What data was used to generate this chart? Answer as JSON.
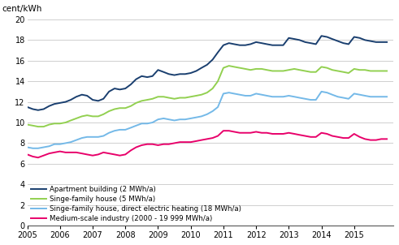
{
  "ylabel": "cent/kWh",
  "ylim": [
    0,
    20
  ],
  "yticks": [
    0,
    2,
    4,
    6,
    8,
    10,
    12,
    14,
    16,
    18,
    20
  ],
  "xlim": [
    2005.0,
    2016.2
  ],
  "xticks": [
    2005,
    2006,
    2007,
    2008,
    2009,
    2010,
    2011,
    2012,
    2013,
    2014,
    2015
  ],
  "background_color": "#ffffff",
  "grid_color": "#c8c8c8",
  "series": [
    {
      "label": "Apartment building (2 MWh/a)",
      "color": "#1a3f6f",
      "linewidth": 1.4,
      "x": [
        2005.0,
        2005.17,
        2005.33,
        2005.5,
        2005.67,
        2005.83,
        2006.0,
        2006.17,
        2006.33,
        2006.5,
        2006.67,
        2006.83,
        2007.0,
        2007.17,
        2007.33,
        2007.5,
        2007.67,
        2007.83,
        2008.0,
        2008.17,
        2008.33,
        2008.5,
        2008.67,
        2008.83,
        2009.0,
        2009.17,
        2009.33,
        2009.5,
        2009.67,
        2009.83,
        2010.0,
        2010.17,
        2010.33,
        2010.5,
        2010.67,
        2010.83,
        2011.0,
        2011.17,
        2011.33,
        2011.5,
        2011.67,
        2011.83,
        2012.0,
        2012.17,
        2012.33,
        2012.5,
        2012.67,
        2012.83,
        2013.0,
        2013.17,
        2013.33,
        2013.5,
        2013.67,
        2013.83,
        2014.0,
        2014.17,
        2014.33,
        2014.5,
        2014.67,
        2014.83,
        2015.0,
        2015.17,
        2015.33,
        2015.5,
        2015.67,
        2015.83,
        2016.0
      ],
      "y": [
        11.5,
        11.3,
        11.2,
        11.3,
        11.6,
        11.8,
        11.9,
        12.0,
        12.2,
        12.5,
        12.7,
        12.6,
        12.2,
        12.1,
        12.3,
        13.0,
        13.3,
        13.2,
        13.3,
        13.7,
        14.2,
        14.5,
        14.4,
        14.5,
        15.1,
        14.9,
        14.7,
        14.6,
        14.7,
        14.7,
        14.8,
        15.0,
        15.3,
        15.6,
        16.1,
        16.8,
        17.5,
        17.7,
        17.6,
        17.5,
        17.5,
        17.6,
        17.8,
        17.7,
        17.6,
        17.5,
        17.5,
        17.5,
        18.2,
        18.1,
        18.0,
        17.8,
        17.7,
        17.6,
        18.4,
        18.3,
        18.1,
        17.9,
        17.7,
        17.6,
        18.3,
        18.2,
        18.0,
        17.9,
        17.8,
        17.8,
        17.8
      ]
    },
    {
      "label": "Singe-family house (5 MWh/a)",
      "color": "#92d050",
      "linewidth": 1.4,
      "x": [
        2005.0,
        2005.17,
        2005.33,
        2005.5,
        2005.67,
        2005.83,
        2006.0,
        2006.17,
        2006.33,
        2006.5,
        2006.67,
        2006.83,
        2007.0,
        2007.17,
        2007.33,
        2007.5,
        2007.67,
        2007.83,
        2008.0,
        2008.17,
        2008.33,
        2008.5,
        2008.67,
        2008.83,
        2009.0,
        2009.17,
        2009.33,
        2009.5,
        2009.67,
        2009.83,
        2010.0,
        2010.17,
        2010.33,
        2010.5,
        2010.67,
        2010.83,
        2011.0,
        2011.17,
        2011.33,
        2011.5,
        2011.67,
        2011.83,
        2012.0,
        2012.17,
        2012.33,
        2012.5,
        2012.67,
        2012.83,
        2013.0,
        2013.17,
        2013.33,
        2013.5,
        2013.67,
        2013.83,
        2014.0,
        2014.17,
        2014.33,
        2014.5,
        2014.67,
        2014.83,
        2015.0,
        2015.17,
        2015.33,
        2015.5,
        2015.67,
        2015.83,
        2016.0
      ],
      "y": [
        9.8,
        9.7,
        9.6,
        9.6,
        9.8,
        9.9,
        9.9,
        10.0,
        10.2,
        10.4,
        10.6,
        10.7,
        10.6,
        10.6,
        10.8,
        11.1,
        11.3,
        11.4,
        11.4,
        11.6,
        11.9,
        12.1,
        12.2,
        12.3,
        12.5,
        12.5,
        12.4,
        12.3,
        12.4,
        12.4,
        12.5,
        12.6,
        12.7,
        12.9,
        13.3,
        14.0,
        15.3,
        15.5,
        15.4,
        15.3,
        15.2,
        15.1,
        15.2,
        15.2,
        15.1,
        15.0,
        15.0,
        15.0,
        15.1,
        15.2,
        15.1,
        15.0,
        14.9,
        14.9,
        15.4,
        15.3,
        15.1,
        15.0,
        14.9,
        14.8,
        15.2,
        15.1,
        15.1,
        15.0,
        15.0,
        15.0,
        15.0
      ]
    },
    {
      "label": "Singe-family house, direct electric heating (18 MWh/a)",
      "color": "#74b9e8",
      "linewidth": 1.4,
      "x": [
        2005.0,
        2005.17,
        2005.33,
        2005.5,
        2005.67,
        2005.83,
        2006.0,
        2006.17,
        2006.33,
        2006.5,
        2006.67,
        2006.83,
        2007.0,
        2007.17,
        2007.33,
        2007.5,
        2007.67,
        2007.83,
        2008.0,
        2008.17,
        2008.33,
        2008.5,
        2008.67,
        2008.83,
        2009.0,
        2009.17,
        2009.33,
        2009.5,
        2009.67,
        2009.83,
        2010.0,
        2010.17,
        2010.33,
        2010.5,
        2010.67,
        2010.83,
        2011.0,
        2011.17,
        2011.33,
        2011.5,
        2011.67,
        2011.83,
        2012.0,
        2012.17,
        2012.33,
        2012.5,
        2012.67,
        2012.83,
        2013.0,
        2013.17,
        2013.33,
        2013.5,
        2013.67,
        2013.83,
        2014.0,
        2014.17,
        2014.33,
        2014.5,
        2014.67,
        2014.83,
        2015.0,
        2015.17,
        2015.33,
        2015.5,
        2015.67,
        2015.83,
        2016.0
      ],
      "y": [
        7.6,
        7.5,
        7.5,
        7.6,
        7.7,
        7.9,
        7.9,
        8.0,
        8.1,
        8.3,
        8.5,
        8.6,
        8.6,
        8.6,
        8.7,
        9.0,
        9.2,
        9.3,
        9.3,
        9.5,
        9.7,
        9.9,
        9.9,
        10.0,
        10.3,
        10.4,
        10.3,
        10.2,
        10.3,
        10.3,
        10.4,
        10.5,
        10.6,
        10.8,
        11.1,
        11.5,
        12.8,
        12.9,
        12.8,
        12.7,
        12.6,
        12.6,
        12.8,
        12.7,
        12.6,
        12.5,
        12.5,
        12.5,
        12.6,
        12.5,
        12.4,
        12.3,
        12.2,
        12.2,
        13.0,
        12.9,
        12.7,
        12.5,
        12.4,
        12.3,
        12.8,
        12.7,
        12.6,
        12.5,
        12.5,
        12.5,
        12.5
      ]
    },
    {
      "label": "Medium-scale industry (2000 - 19 999 MWh/a)",
      "color": "#e8006a",
      "linewidth": 1.4,
      "x": [
        2005.0,
        2005.17,
        2005.33,
        2005.5,
        2005.67,
        2005.83,
        2006.0,
        2006.17,
        2006.33,
        2006.5,
        2006.67,
        2006.83,
        2007.0,
        2007.17,
        2007.33,
        2007.5,
        2007.67,
        2007.83,
        2008.0,
        2008.17,
        2008.33,
        2008.5,
        2008.67,
        2008.83,
        2009.0,
        2009.17,
        2009.33,
        2009.5,
        2009.67,
        2009.83,
        2010.0,
        2010.17,
        2010.33,
        2010.5,
        2010.67,
        2010.83,
        2011.0,
        2011.17,
        2011.33,
        2011.5,
        2011.67,
        2011.83,
        2012.0,
        2012.17,
        2012.33,
        2012.5,
        2012.67,
        2012.83,
        2013.0,
        2013.17,
        2013.33,
        2013.5,
        2013.67,
        2013.83,
        2014.0,
        2014.17,
        2014.33,
        2014.5,
        2014.67,
        2014.83,
        2015.0,
        2015.17,
        2015.33,
        2015.5,
        2015.67,
        2015.83,
        2016.0
      ],
      "y": [
        6.9,
        6.7,
        6.6,
        6.8,
        7.0,
        7.1,
        7.2,
        7.1,
        7.1,
        7.1,
        7.0,
        6.9,
        6.8,
        6.9,
        7.1,
        7.0,
        6.9,
        6.8,
        6.9,
        7.3,
        7.6,
        7.8,
        7.9,
        7.9,
        7.8,
        7.9,
        7.9,
        8.0,
        8.1,
        8.1,
        8.1,
        8.2,
        8.3,
        8.4,
        8.5,
        8.7,
        9.2,
        9.2,
        9.1,
        9.0,
        9.0,
        9.0,
        9.1,
        9.0,
        9.0,
        8.9,
        8.9,
        8.9,
        9.0,
        8.9,
        8.8,
        8.7,
        8.6,
        8.6,
        9.0,
        8.9,
        8.7,
        8.6,
        8.5,
        8.5,
        8.9,
        8.6,
        8.4,
        8.3,
        8.3,
        8.4,
        8.4
      ]
    }
  ],
  "legend": [
    {
      "label": "Apartment building (2 MWh/a)",
      "color": "#1a3f6f"
    },
    {
      "label": "Singe-family house (5 MWh/a)",
      "color": "#92d050"
    },
    {
      "label": "Singe-family house, direct electric heating (18 MWh/a)",
      "color": "#74b9e8"
    },
    {
      "label": "Medium-scale industry (2000 - 19 999 MWh/a)",
      "color": "#e8006a"
    }
  ]
}
